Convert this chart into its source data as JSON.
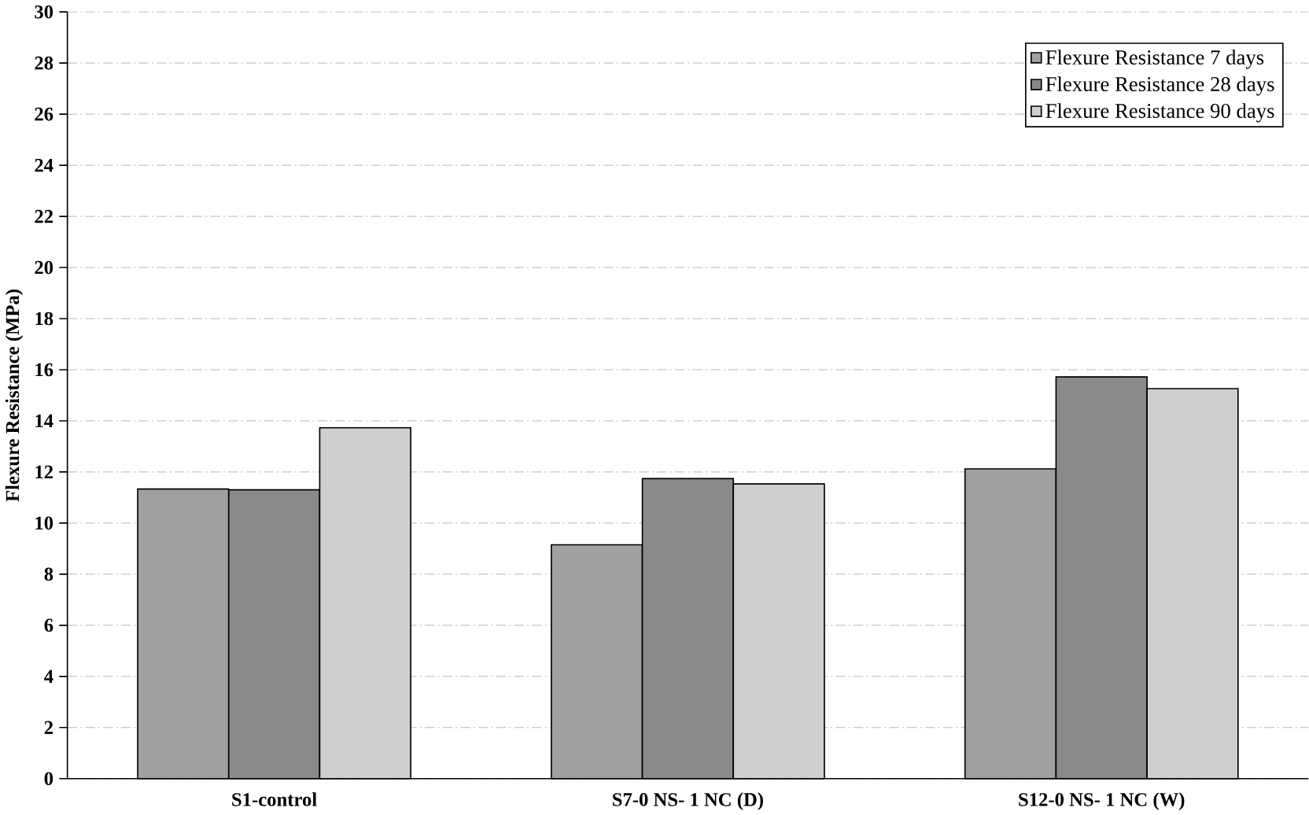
{
  "chart_data": {
    "type": "bar",
    "ylabel": "Flexure Resistance (MPa)",
    "categories": [
      "S1-control",
      "S7-0 NS- 1 NC (D)",
      "S12-0 NS- 1 NC (W)"
    ],
    "series": [
      {
        "name": "Flexure Resistance 7 days",
        "color": "#a0a0a0",
        "values": [
          11.33,
          9.15,
          12.12
        ]
      },
      {
        "name": "Flexure Resistance 28 days",
        "color": "#8a8a8a",
        "values": [
          11.3,
          11.74,
          15.72
        ]
      },
      {
        "name": "Flexure Resistance 90 days",
        "color": "#cfcfcf",
        "values": [
          13.73,
          11.53,
          15.26
        ]
      }
    ],
    "ylim": [
      0,
      30
    ],
    "yticks": [
      0,
      2,
      4,
      6,
      8,
      10,
      12,
      14,
      16,
      18,
      20,
      22,
      24,
      26,
      28,
      30
    ],
    "grid": "y",
    "legend": "top right"
  }
}
